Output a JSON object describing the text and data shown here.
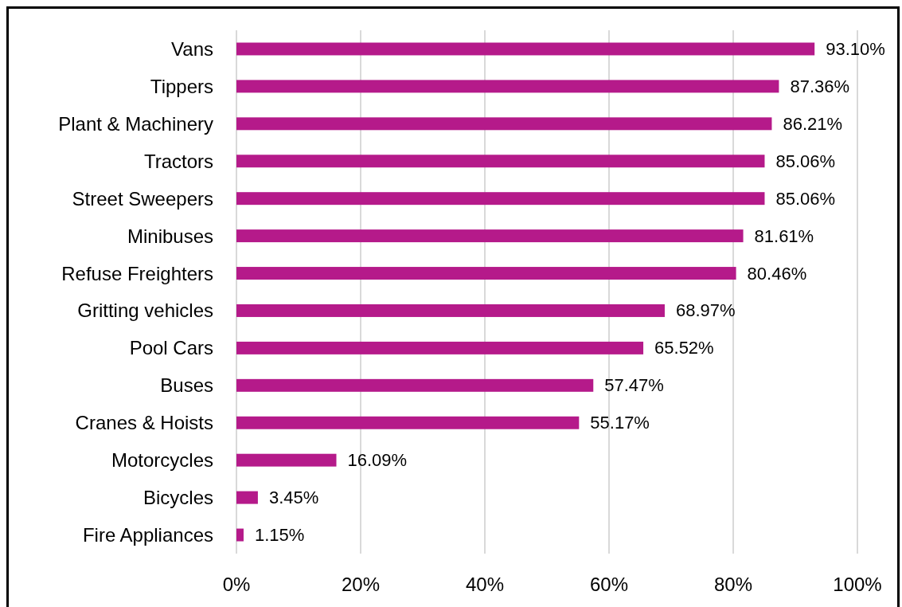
{
  "chart_data": {
    "type": "bar",
    "orientation": "horizontal",
    "categories": [
      "Vans",
      "Tippers",
      "Plant & Machinery",
      "Tractors",
      "Street Sweepers",
      "Minibuses",
      "Refuse Freighters",
      "Gritting vehicles",
      "Pool Cars",
      "Buses",
      "Cranes & Hoists",
      "Motorcycles",
      "Bicycles",
      "Fire Appliances"
    ],
    "values": [
      93.1,
      87.36,
      86.21,
      85.06,
      85.06,
      81.61,
      80.46,
      68.97,
      65.52,
      57.47,
      55.17,
      16.09,
      3.45,
      1.15
    ],
    "value_labels": [
      "93.10%",
      "87.36%",
      "86.21%",
      "85.06%",
      "85.06%",
      "81.61%",
      "80.46%",
      "68.97%",
      "65.52%",
      "57.47%",
      "55.17%",
      "16.09%",
      "3.45%",
      "1.15%"
    ],
    "color": "#b51a8a",
    "xlim": [
      0,
      100
    ],
    "xticks": [
      {
        "value": 0,
        "label": "0%"
      },
      {
        "value": 20,
        "label": "20%"
      },
      {
        "value": 40,
        "label": "40%"
      },
      {
        "value": 60,
        "label": "60%"
      },
      {
        "value": 80,
        "label": "80%"
      },
      {
        "value": 100,
        "label": "100%"
      }
    ],
    "grid": "x"
  }
}
